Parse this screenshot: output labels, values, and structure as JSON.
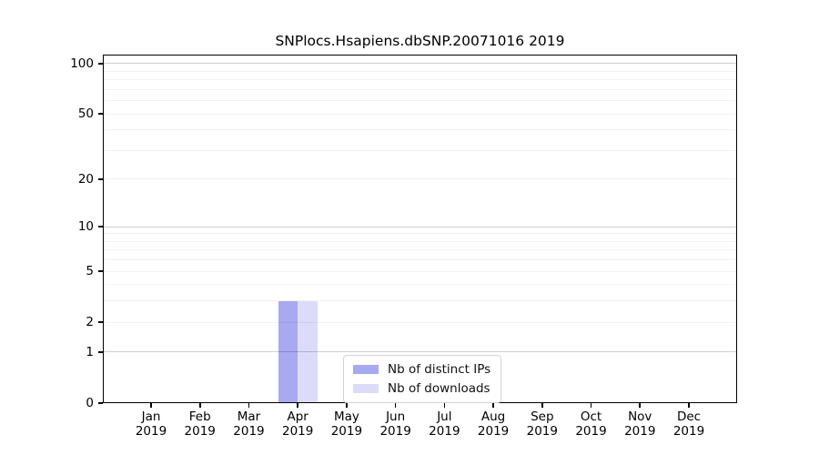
{
  "chart_data": {
    "type": "bar",
    "title": "SNPlocs.Hsapiens.dbSNP.20071016 2019",
    "categories": [
      "Jan",
      "Feb",
      "Mar",
      "Apr",
      "May",
      "Jun",
      "Jul",
      "Aug",
      "Sep",
      "Oct",
      "Nov",
      "Dec"
    ],
    "x_year": "2019",
    "series": [
      {
        "name": "Nb of distinct IPs",
        "color": "#a9a9f1",
        "values": [
          0,
          0,
          0,
          3,
          0,
          0,
          0,
          0,
          0,
          0,
          0,
          0
        ]
      },
      {
        "name": "Nb of downloads",
        "color": "#dcdcf8",
        "values": [
          0,
          0,
          0,
          3,
          0,
          0,
          0,
          0,
          0,
          0,
          0,
          0
        ]
      }
    ],
    "xlabel": "",
    "ylabel": "",
    "scale": "log1p",
    "ylim": [
      0,
      113
    ],
    "y_ticks": [
      0,
      1,
      2,
      5,
      10,
      20,
      50,
      100
    ],
    "grid": {
      "show": true,
      "major_values": [
        1,
        10,
        100
      ],
      "minor_decades": [
        1,
        10
      ],
      "major_color": "#cfcfcf",
      "minor_color": "#f1f1f1"
    },
    "legend": {
      "position": "lower center",
      "entries": [
        "Nb of distinct IPs",
        "Nb of downloads"
      ]
    }
  }
}
